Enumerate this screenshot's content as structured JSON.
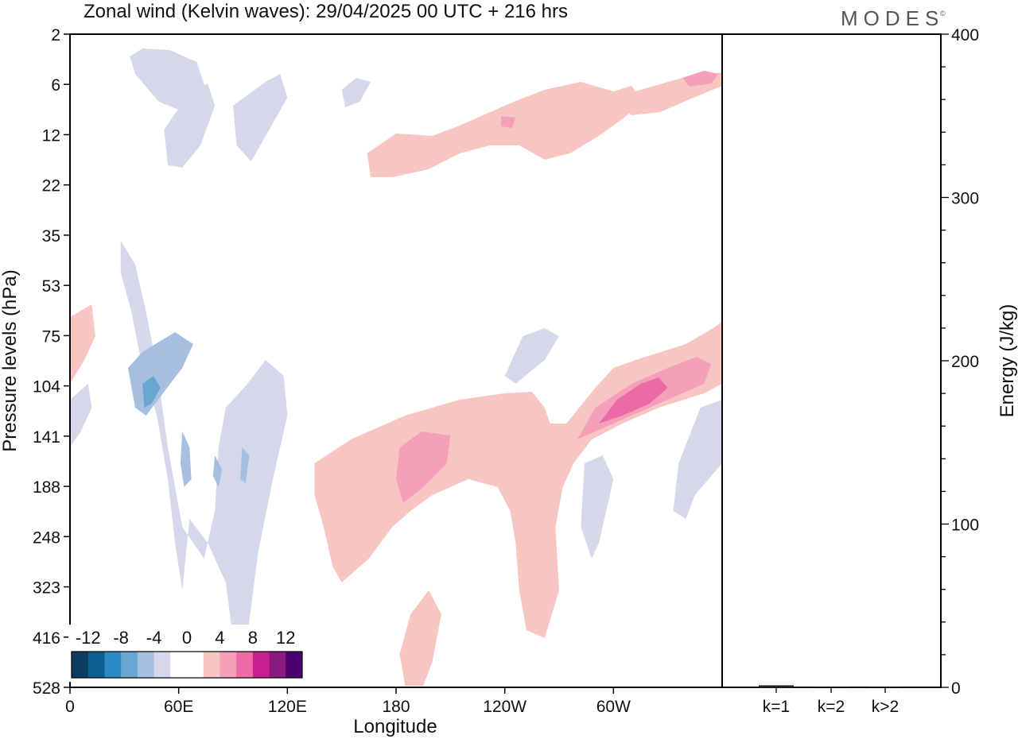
{
  "branding": {
    "logo_text": "MODES",
    "logo_mark": "©"
  },
  "chart_data": [
    {
      "type": "heatmap",
      "title": "Zonal wind (Kelvin waves):  29/04/2025  00 UTC  + 216 hrs",
      "xlabel": "Longitude",
      "ylabel": "Pressure levels (hPa)",
      "x_ticks": [
        "0",
        "60E",
        "120E",
        "180",
        "120W",
        "60W"
      ],
      "x_tick_degrees": [
        0,
        60,
        120,
        180,
        240,
        300
      ],
      "x_range_degrees": [
        0,
        360
      ],
      "y_ticks": [
        "2",
        "6",
        "12",
        "22",
        "35",
        "53",
        "75",
        "104",
        "141",
        "188",
        "248",
        "323",
        "416",
        "528"
      ],
      "y_scale": "log",
      "colorbar": {
        "labels": [
          "-12",
          "-8",
          "-4",
          "0",
          "4",
          "8",
          "12"
        ],
        "colors": [
          "#0d3d5e",
          "#0b5f92",
          "#2b89c4",
          "#69a7d2",
          "#a6bfe0",
          "#d4d8ea",
          "#ffffff",
          "#ffffff",
          "#f8c6c2",
          "#f5a0b8",
          "#ec6aa6",
          "#c8208f",
          "#8a1a7f",
          "#4d0070"
        ],
        "placement": "bottom-left inset"
      },
      "features": [
        {
          "sign": "negative",
          "level": 1,
          "points": [
            [
              33,
              28
            ],
            [
              36,
              50
            ],
            [
              49,
              85
            ],
            [
              60,
              95
            ],
            [
              72,
              98
            ],
            [
              75,
              70
            ],
            [
              70,
              35
            ],
            [
              55,
              20
            ],
            [
              40,
              18
            ]
          ]
        },
        {
          "sign": "negative",
          "level": 1,
          "points": [
            [
              28,
              260
            ],
            [
              36,
              290
            ],
            [
              42,
              350
            ],
            [
              48,
              420
            ],
            [
              54,
              520
            ],
            [
              62,
              620
            ],
            [
              74,
              660
            ],
            [
              80,
              600
            ],
            [
              82,
              520
            ],
            [
              86,
              470
            ],
            [
              98,
              440
            ],
            [
              108,
              410
            ],
            [
              118,
              430
            ],
            [
              120,
              480
            ],
            [
              112,
              560
            ],
            [
              104,
              650
            ],
            [
              100,
              720
            ],
            [
              96,
              790
            ],
            [
              90,
              760
            ],
            [
              86,
              690
            ],
            [
              76,
              640
            ],
            [
              66,
              610
            ],
            [
              62,
              700
            ],
            [
              58,
              640
            ],
            [
              54,
              560
            ],
            [
              48,
              480
            ],
            [
              40,
              420
            ],
            [
              34,
              350
            ],
            [
              28,
              300
            ]
          ]
        },
        {
          "sign": "negative",
          "level": 2,
          "points": [
            [
              32,
              420
            ],
            [
              40,
              400
            ],
            [
              58,
              375
            ],
            [
              68,
              390
            ],
            [
              62,
              420
            ],
            [
              52,
              450
            ],
            [
              42,
              480
            ],
            [
              36,
              470
            ]
          ]
        },
        {
          "sign": "negative",
          "level": 2,
          "points": [
            [
              62,
              500
            ],
            [
              66,
              520
            ],
            [
              67,
              560
            ],
            [
              63,
              570
            ],
            [
              61,
              540
            ]
          ]
        },
        {
          "sign": "negative",
          "level": 2,
          "points": [
            [
              80,
              530
            ],
            [
              84,
              548
            ],
            [
              82,
              570
            ],
            [
              79,
              556
            ]
          ]
        },
        {
          "sign": "negative",
          "level": 2,
          "points": [
            [
              95,
              520
            ],
            [
              99,
              530
            ],
            [
              97,
              565
            ],
            [
              94,
              560
            ]
          ]
        },
        {
          "sign": "negative",
          "level": 3,
          "points": [
            [
              40,
              440
            ],
            [
              46,
              430
            ],
            [
              50,
              445
            ],
            [
              45,
              465
            ],
            [
              41,
              470
            ]
          ]
        },
        {
          "sign": "negative",
          "level": 1,
          "points": [
            [
              250,
              380
            ],
            [
              262,
              370
            ],
            [
              270,
              380
            ],
            [
              262,
              410
            ],
            [
              246,
              440
            ],
            [
              240,
              430
            ]
          ]
        },
        {
          "sign": "negative",
          "level": 1,
          "points": [
            [
              284,
              540
            ],
            [
              294,
              530
            ],
            [
              300,
              560
            ],
            [
              292,
              640
            ],
            [
              288,
              660
            ],
            [
              282,
              620
            ]
          ]
        },
        {
          "sign": "negative",
          "level": 1,
          "points": [
            [
              348,
              470
            ],
            [
              360,
              460
            ],
            [
              360,
              540
            ],
            [
              345,
              580
            ],
            [
              340,
              610
            ],
            [
              333,
              600
            ],
            [
              336,
              540
            ]
          ]
        },
        {
          "sign": "negative",
          "level": 1,
          "points": [
            [
              0,
              460
            ],
            [
              10,
              440
            ],
            [
              12,
              470
            ],
            [
              6,
              500
            ],
            [
              0,
              520
            ]
          ]
        },
        {
          "sign": "positive",
          "level": 1,
          "points": [
            [
              135,
              540
            ],
            [
              155,
              510
            ],
            [
              185,
              480
            ],
            [
              215,
              460
            ],
            [
              240,
              452
            ],
            [
              255,
              450
            ],
            [
              262,
              470
            ],
            [
              265,
              490
            ],
            [
              274,
              490
            ],
            [
              290,
              445
            ],
            [
              300,
              420
            ],
            [
              315,
              408
            ],
            [
              340,
              390
            ],
            [
              355,
              370
            ],
            [
              360,
              362
            ],
            [
              360,
              440
            ],
            [
              350,
              452
            ],
            [
              325,
              470
            ],
            [
              305,
              490
            ],
            [
              288,
              510
            ],
            [
              278,
              540
            ],
            [
              272,
              570
            ],
            [
              268,
              620
            ],
            [
              270,
              700
            ],
            [
              262,
              760
            ],
            [
              252,
              750
            ],
            [
              248,
              700
            ],
            [
              246,
              640
            ],
            [
              243,
              600
            ],
            [
              236,
              570
            ],
            [
              220,
              560
            ],
            [
              200,
              580
            ],
            [
              188,
              600
            ],
            [
              178,
              620
            ],
            [
              165,
              660
            ],
            [
              150,
              690
            ],
            [
              145,
              670
            ],
            [
              140,
              620
            ],
            [
              135,
              580
            ]
          ]
        },
        {
          "sign": "positive",
          "level": 2,
          "points": [
            [
              182,
              520
            ],
            [
              194,
              500
            ],
            [
              210,
              505
            ],
            [
              208,
              540
            ],
            [
              195,
              570
            ],
            [
              184,
              590
            ],
            [
              180,
              560
            ]
          ]
        },
        {
          "sign": "positive",
          "level": 2,
          "points": [
            [
              280,
              510
            ],
            [
              290,
              470
            ],
            [
              310,
              440
            ],
            [
              330,
              420
            ],
            [
              346,
              406
            ],
            [
              354,
              415
            ],
            [
              350,
              440
            ],
            [
              330,
              460
            ],
            [
              310,
              480
            ],
            [
              292,
              498
            ]
          ]
        },
        {
          "sign": "positive",
          "level": 3,
          "points": [
            [
              292,
              490
            ],
            [
              302,
              460
            ],
            [
              315,
              440
            ],
            [
              325,
              432
            ],
            [
              330,
              445
            ],
            [
              320,
              465
            ],
            [
              305,
              480
            ]
          ]
        },
        {
          "sign": "positive",
          "level": 1,
          "points": [
            [
              0,
              356
            ],
            [
              12,
              340
            ],
            [
              14,
              380
            ],
            [
              8,
              410
            ],
            [
              0,
              440
            ]
          ]
        },
        {
          "sign": "positive",
          "level": 1,
          "points": [
            [
              188,
              730
            ],
            [
              198,
              700
            ],
            [
              205,
              730
            ],
            [
              200,
              790
            ],
            [
              195,
              820
            ],
            [
              185,
              820
            ],
            [
              182,
              780
            ]
          ]
        },
        {
          "sign": "positive",
          "level": 1,
          "points": [
            [
              164,
              150
            ],
            [
              180,
              125
            ],
            [
              200,
              128
            ],
            [
              215,
              115
            ],
            [
              230,
              100
            ],
            [
              245,
              85
            ],
            [
              262,
              70
            ],
            [
              282,
              60
            ],
            [
              300,
              72
            ],
            [
              310,
              65
            ],
            [
              316,
              85
            ],
            [
              306,
              105
            ],
            [
              292,
              128
            ],
            [
              276,
              150
            ],
            [
              262,
              158
            ],
            [
              248,
              140
            ],
            [
              232,
              140
            ],
            [
              215,
              150
            ],
            [
              198,
              170
            ],
            [
              178,
              180
            ],
            [
              166,
              180
            ]
          ]
        },
        {
          "sign": "positive",
          "level": 1,
          "points": [
            [
              300,
              80
            ],
            [
              318,
              68
            ],
            [
              338,
              55
            ],
            [
              360,
              48
            ],
            [
              360,
              65
            ],
            [
              342,
              82
            ],
            [
              326,
              98
            ],
            [
              310,
              102
            ]
          ]
        },
        {
          "sign": "positive",
          "level": 2,
          "points": [
            [
              338,
              55
            ],
            [
              350,
              46
            ],
            [
              358,
              50
            ],
            [
              354,
              62
            ],
            [
              342,
              66
            ]
          ]
        },
        {
          "sign": "positive",
          "level": 2,
          "points": [
            [
              238,
              103
            ],
            [
              246,
              105
            ],
            [
              244,
              118
            ],
            [
              238,
              116
            ]
          ]
        },
        {
          "sign": "negative",
          "level": 1,
          "points": [
            [
              52,
              120
            ],
            [
              64,
              80
            ],
            [
              76,
              62
            ],
            [
              80,
              90
            ],
            [
              72,
              140
            ],
            [
              62,
              168
            ],
            [
              54,
              165
            ]
          ]
        },
        {
          "sign": "negative",
          "level": 1,
          "points": [
            [
              90,
              90
            ],
            [
              108,
              60
            ],
            [
              116,
              50
            ],
            [
              120,
              80
            ],
            [
              110,
              120
            ],
            [
              100,
              160
            ],
            [
              92,
              140
            ]
          ]
        },
        {
          "sign": "negative",
          "level": 1,
          "points": [
            [
              150,
              70
            ],
            [
              158,
              55
            ],
            [
              166,
              60
            ],
            [
              160,
              85
            ],
            [
              152,
              92
            ]
          ]
        }
      ]
    },
    {
      "type": "bar",
      "ylabel": "Energy (J/kg)",
      "categories": [
        "k=1",
        "k=2",
        "k>2"
      ],
      "values": [
        1,
        0,
        0
      ],
      "ylim": [
        0,
        400
      ],
      "y_ticks": [
        "0",
        "100",
        "200",
        "300",
        "400"
      ]
    }
  ]
}
